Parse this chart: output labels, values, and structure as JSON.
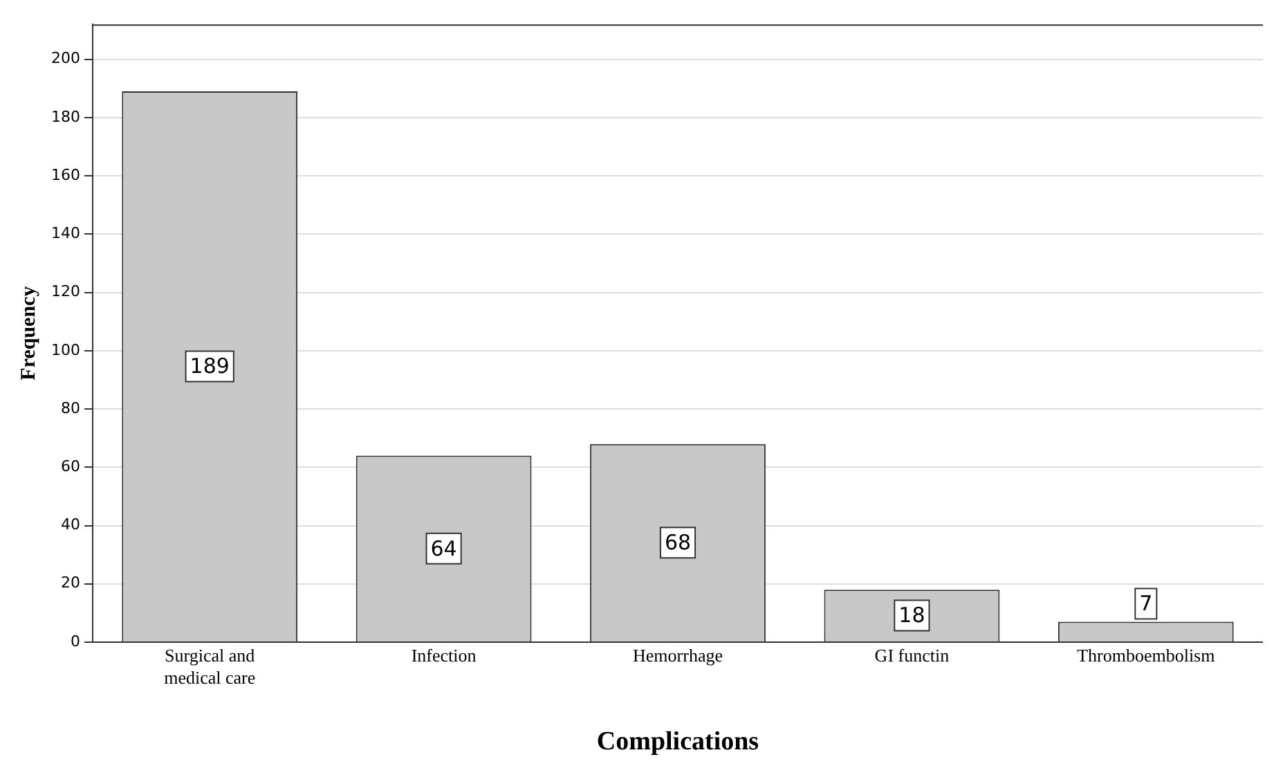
{
  "chart_data": {
    "type": "bar",
    "xlabel": "Complications",
    "ylabel": "Frequency",
    "categories": [
      "Surgical and medical care",
      "Infection",
      "Hemorrhage",
      "GI functin",
      "Thromboembolism"
    ],
    "values": [
      189,
      64,
      68,
      18,
      7
    ],
    "color": "#c8c8c8",
    "ylim": [
      0,
      212
    ],
    "yticks": [
      0,
      20,
      40,
      60,
      80,
      100,
      120,
      140,
      160,
      180,
      200
    ],
    "grid": "y",
    "data_labels": true,
    "legend": false
  }
}
